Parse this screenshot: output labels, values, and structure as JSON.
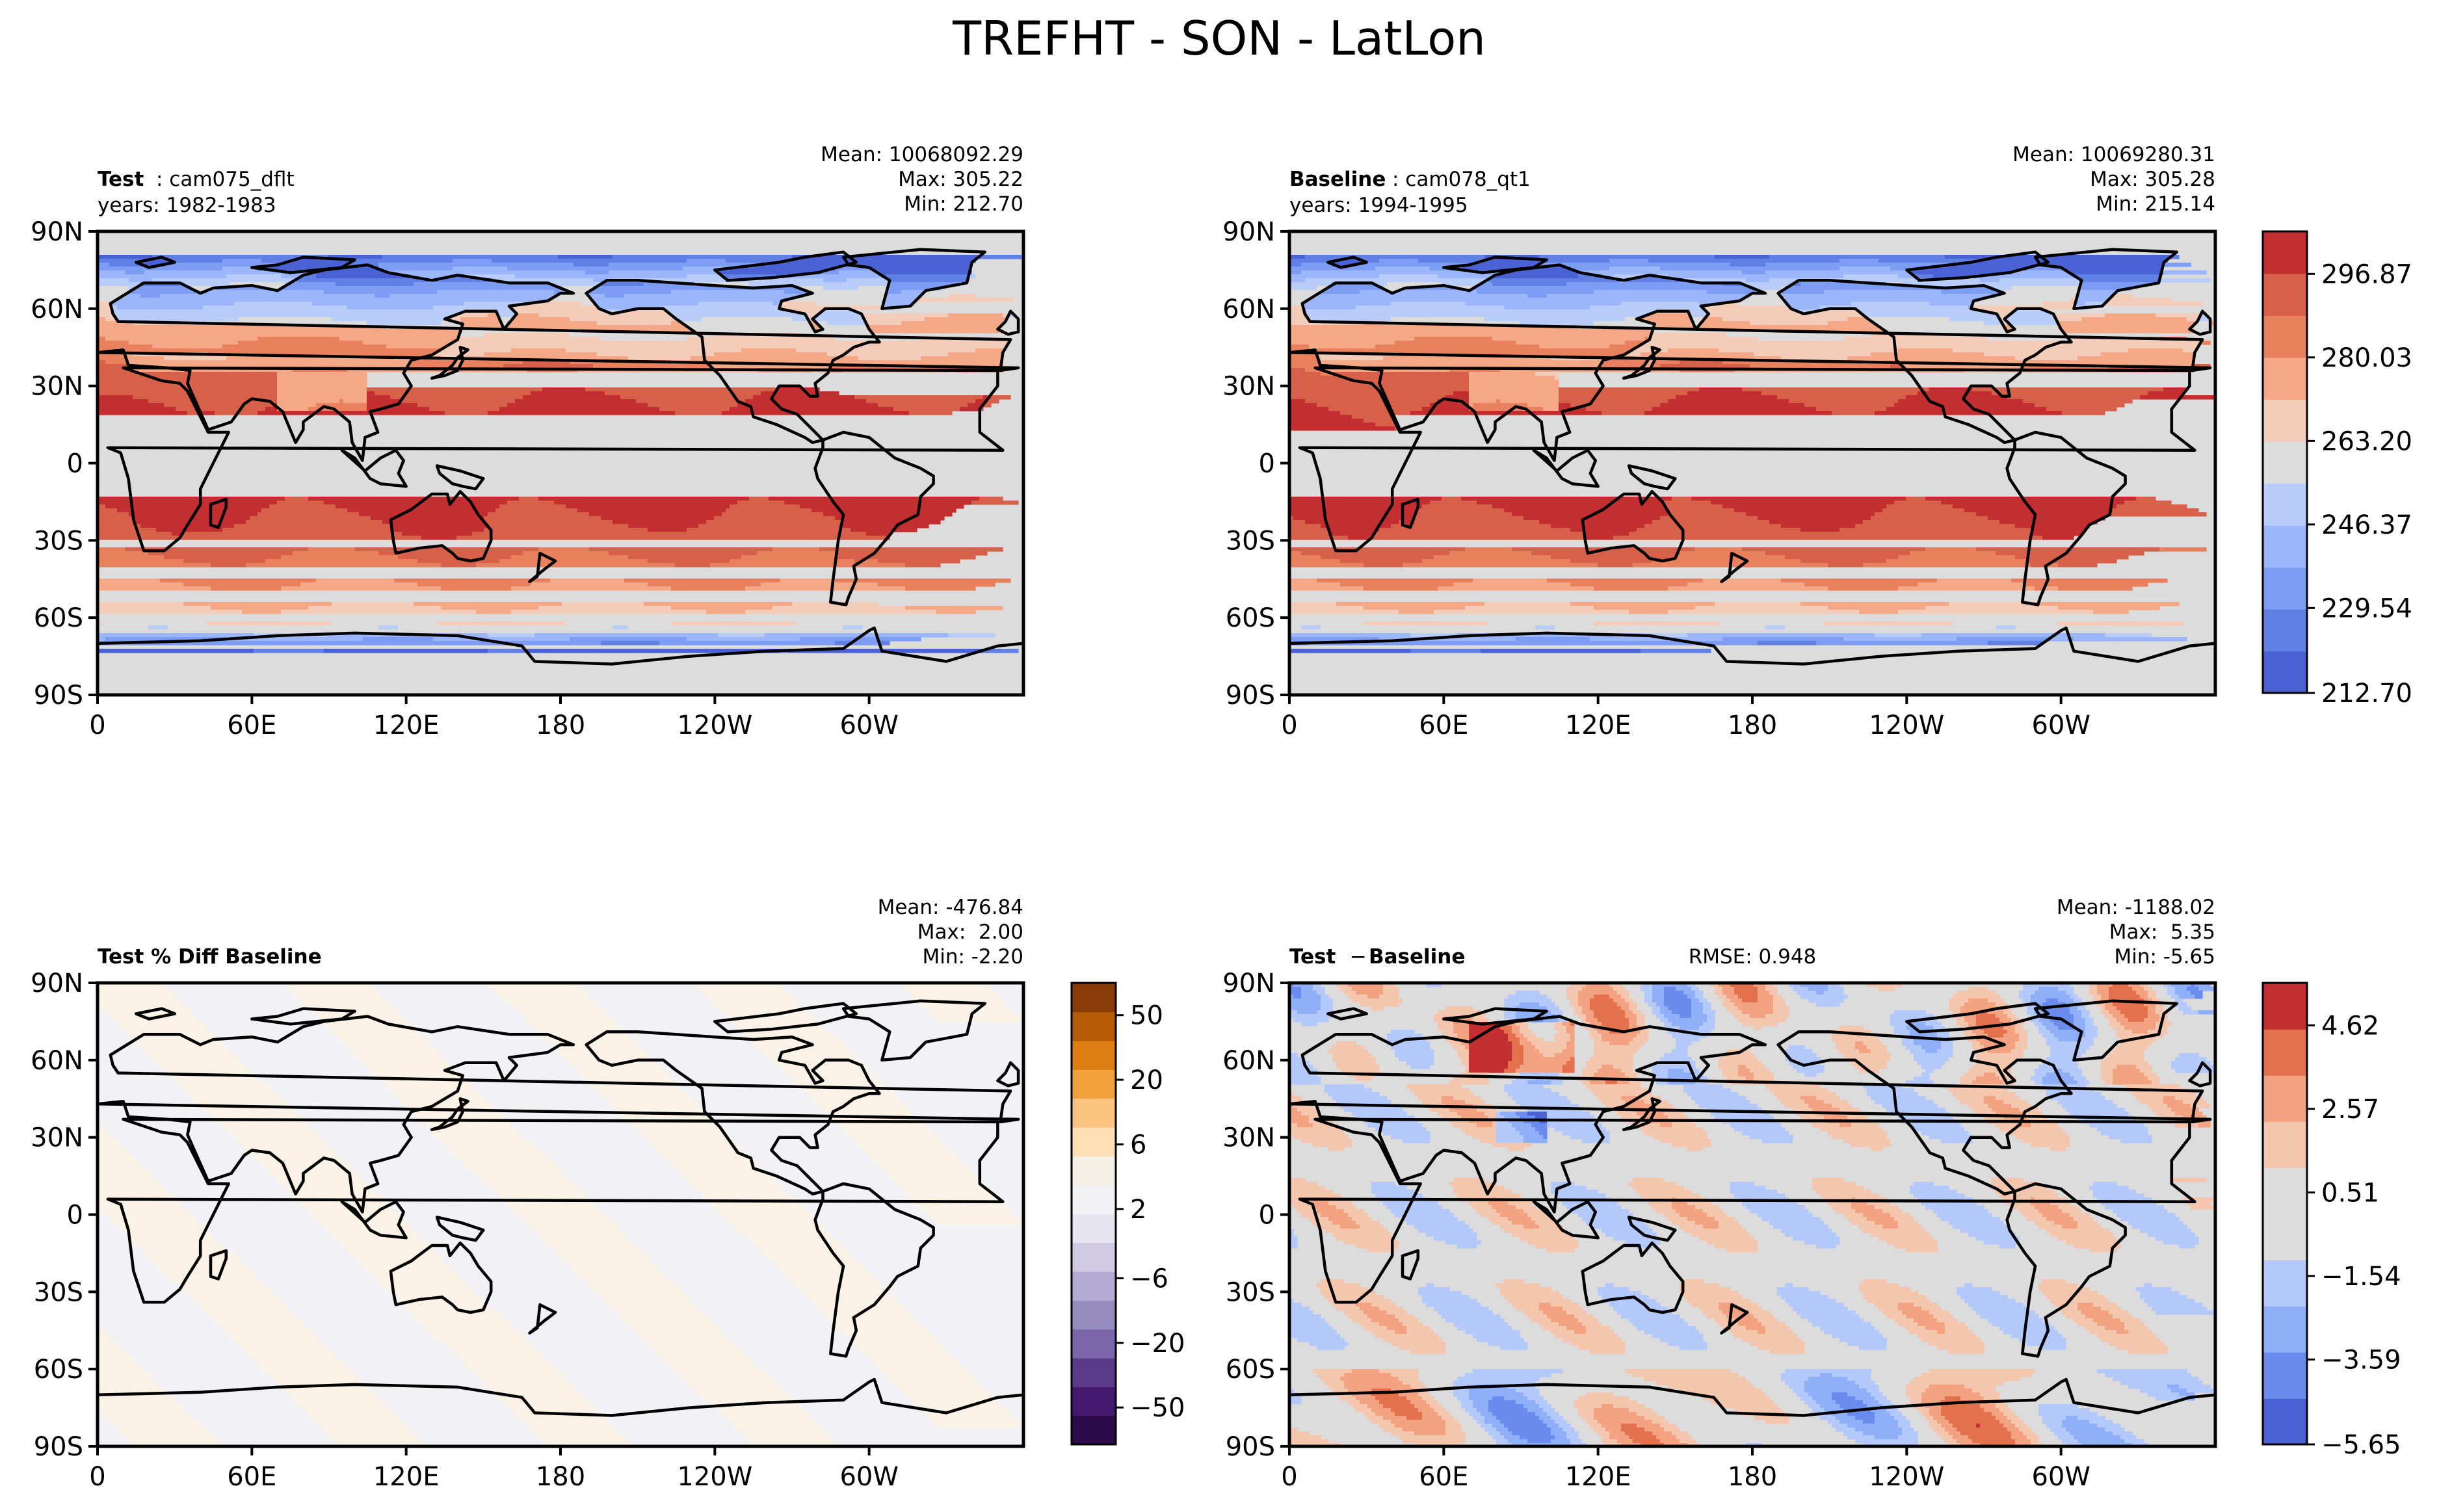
{
  "figure": {
    "title": "TREFHT - SON - LatLon"
  },
  "axes": {
    "lat_labels": [
      "90N",
      "60N",
      "30N",
      "0",
      "30S",
      "60S",
      "90S"
    ],
    "lon_labels": [
      "0",
      "60E",
      "120E",
      "180",
      "120W",
      "60W"
    ]
  },
  "panels": {
    "test": {
      "label_bold": "Test",
      "label_rest": ": cam075_dflt",
      "years": "years: 1982-1983",
      "mean": "Mean: 10068092.29",
      "max": "Max: 305.22",
      "min": "Min: 212.70"
    },
    "baseline": {
      "label_bold": "Baseline",
      "label_rest": ": cam078_qt1",
      "years": "years: 1994-1995",
      "mean": "Mean: 10069280.31",
      "max": "Max: 305.28",
      "min": "Min: 215.14"
    },
    "pctdiff": {
      "label_bold": "Test % Diff Baseline",
      "mean": "Mean: -476.84",
      "max": "Max:  2.00",
      "min": "Min: -2.20"
    },
    "diff": {
      "label_bold": "Test",
      "label_op": " − ",
      "label_bold2": "Baseline",
      "rmse": "RMSE: 0.948",
      "mean": "Mean: -1188.02",
      "max": "Max:  5.35",
      "min": "Min: -5.65"
    }
  },
  "colorbars": {
    "main": {
      "ticks": [
        "296.87",
        "280.03",
        "263.20",
        "246.37",
        "229.54",
        "212.70"
      ]
    },
    "pct": {
      "ticks": [
        "50",
        "20",
        "6",
        "2",
        "−6",
        "−20",
        "−50"
      ]
    },
    "diff": {
      "ticks": [
        "4.62",
        "2.57",
        "0.51",
        "−1.54",
        "−3.59",
        "−5.65"
      ]
    }
  },
  "chart_data": [
    {
      "type": "heatmap",
      "name": "Test",
      "variable": "TREFHT",
      "season": "SON",
      "case": "cam075_dflt",
      "years": "1982-1983",
      "mean": 10068092.29,
      "max": 305.22,
      "min": 212.7,
      "units_range": [
        212.7,
        305.22
      ],
      "colormap": "coolwarm",
      "xlabel_ticks": [
        "0",
        "60E",
        "120E",
        "180",
        "120W",
        "60W"
      ],
      "ylabel_ticks": [
        "90N",
        "60N",
        "30N",
        "0",
        "30S",
        "60S",
        "90S"
      ]
    },
    {
      "type": "heatmap",
      "name": "Baseline",
      "variable": "TREFHT",
      "season": "SON",
      "case": "cam078_qt1",
      "years": "1994-1995",
      "mean": 10069280.31,
      "max": 305.28,
      "min": 215.14,
      "colormap": "coolwarm"
    },
    {
      "type": "heatmap",
      "name": "Test % Diff Baseline",
      "mean": -476.84,
      "max": 2.0,
      "min": -2.2,
      "colormap": "PuOr_r",
      "colorbar_ticks": [
        50,
        20,
        6,
        2,
        -6,
        -20,
        -50
      ]
    },
    {
      "type": "heatmap",
      "name": "Test − Baseline",
      "rmse": 0.948,
      "mean": -1188.02,
      "max": 5.35,
      "min": -5.65,
      "colormap": "coolwarm",
      "colorbar_ticks": [
        4.62,
        2.57,
        0.51,
        -1.54,
        -3.59,
        -5.65
      ]
    }
  ],
  "colors": {
    "main_levels": [
      "#4b62d4",
      "#6180e6",
      "#7d9df4",
      "#9bb6fb",
      "#b9cdfa",
      "#dcdcdc",
      "#f3cdb9",
      "#f4a886",
      "#e9815f",
      "#d7604a",
      "#c32e30"
    ],
    "diff_levels": [
      "#4b62d4",
      "#6a8cee",
      "#8faff9",
      "#b3c9fb",
      "#dcdcdc",
      "#dcdcdc",
      "#f4c6ad",
      "#f3a282",
      "#e3714e",
      "#c32e30"
    ],
    "pct_levels": [
      "#2d0b4a",
      "#44186c",
      "#5b3a8a",
      "#7a66a8",
      "#978cbe",
      "#b4acd2",
      "#cfc9e3",
      "#e6e4f0",
      "#f2f2f5",
      "#f6efe6",
      "#fde0b6",
      "#fbc480",
      "#f2a13f",
      "#dd7d12",
      "#b65b06",
      "#8a3c07"
    ],
    "pct_background": "#f2f2f6",
    "pct_warm": "#faf2e6"
  }
}
